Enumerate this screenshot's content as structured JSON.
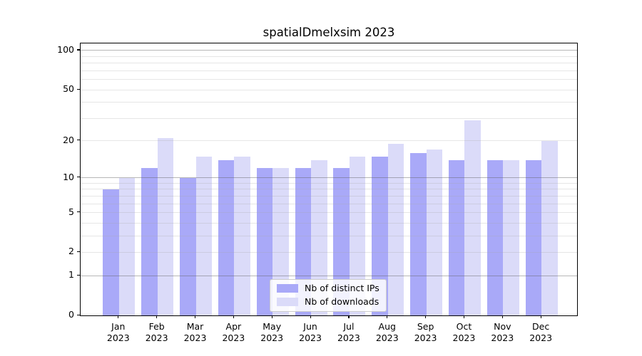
{
  "chart_data": {
    "type": "bar",
    "title": "spatialDmelxsim 2023",
    "categories": [
      "Jan",
      "Feb",
      "Mar",
      "Apr",
      "May",
      "Jun",
      "Jul",
      "Aug",
      "Sep",
      "Oct",
      "Nov",
      "Dec"
    ],
    "category_year": "2023",
    "series": [
      {
        "name": "Nb of distinct IPs",
        "color": "#a9a9f8",
        "values": [
          8,
          12,
          10,
          14,
          12,
          12,
          12,
          15,
          16,
          14,
          14,
          14
        ]
      },
      {
        "name": "Nb of downloads",
        "color": "#dbdbf9",
        "values": [
          10,
          21,
          15,
          15,
          12,
          14,
          15,
          19,
          17,
          29,
          14,
          20
        ]
      }
    ],
    "xlabel": "",
    "ylabel": "",
    "yscale": "log1p",
    "yticks": [
      0,
      1,
      2,
      5,
      10,
      20,
      50,
      100
    ],
    "ytick_labels": [
      "0",
      "1",
      "2",
      "5",
      "10",
      "20",
      "50",
      "100"
    ],
    "ylim": [
      0,
      113
    ],
    "grid": {
      "on": true,
      "major_lines_at": [
        1,
        10,
        100
      ],
      "minor_lines_at": [
        2,
        3,
        4,
        5,
        6,
        7,
        8,
        9,
        20,
        30,
        40,
        50,
        60,
        70,
        80,
        90
      ]
    },
    "legend_position": "lower center"
  },
  "colors": {
    "background": "#ffffff",
    "axis": "#000000",
    "major_grid": "#b3b3b3",
    "minor_grid": "#ebebeb",
    "legend_border": "#cccccc"
  }
}
